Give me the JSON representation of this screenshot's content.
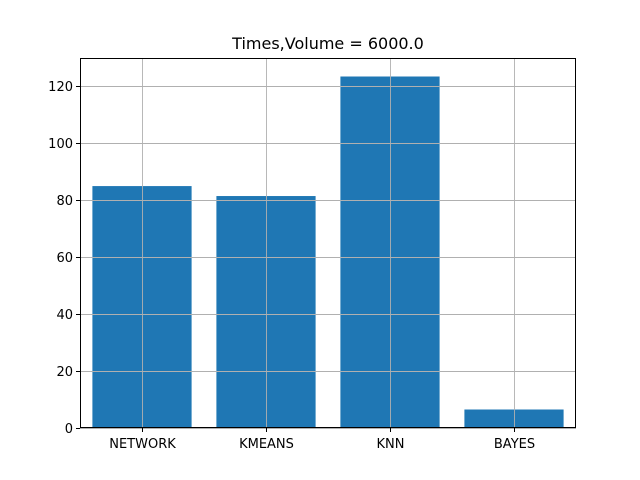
{
  "chart_data": {
    "type": "bar",
    "title": "Times,Volume = 6000.0",
    "xlabel": "",
    "ylabel": "",
    "categories": [
      "NETWORK",
      "KMEANS",
      "KNN",
      "BAYES"
    ],
    "values": [
      85.0,
      81.5,
      123.5,
      6.5
    ],
    "ylim": [
      0,
      130
    ],
    "yticks": [
      0,
      20,
      40,
      60,
      80,
      100,
      120
    ],
    "grid": true,
    "legend": "none",
    "colors": {
      "bar": "#1f77b4",
      "grid": "#b0b0b0",
      "axis": "#000000",
      "background": "#ffffff"
    }
  }
}
